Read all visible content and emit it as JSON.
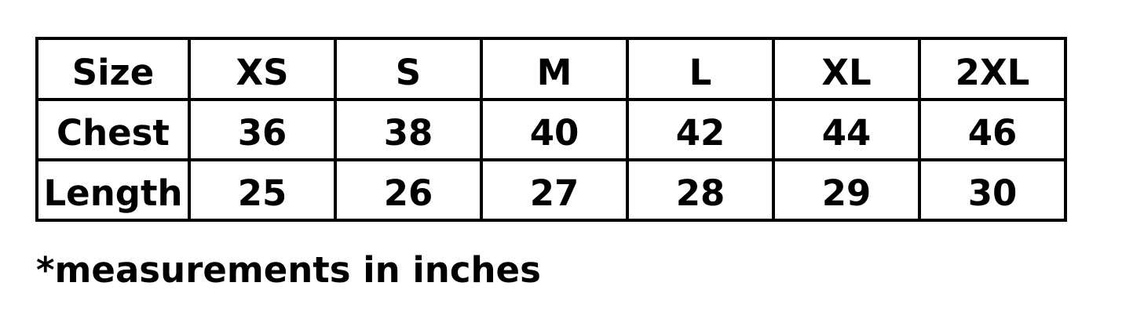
{
  "table": {
    "header": [
      "Size",
      "XS",
      "S",
      "M",
      "L",
      "XL",
      "2XL"
    ],
    "rows": [
      [
        "Chest",
        "36",
        "38",
        "40",
        "42",
        "44",
        "46"
      ],
      [
        "Length",
        "25",
        "26",
        "27",
        "28",
        "29",
        "30"
      ]
    ]
  },
  "footnote": "*measurements in inches"
}
